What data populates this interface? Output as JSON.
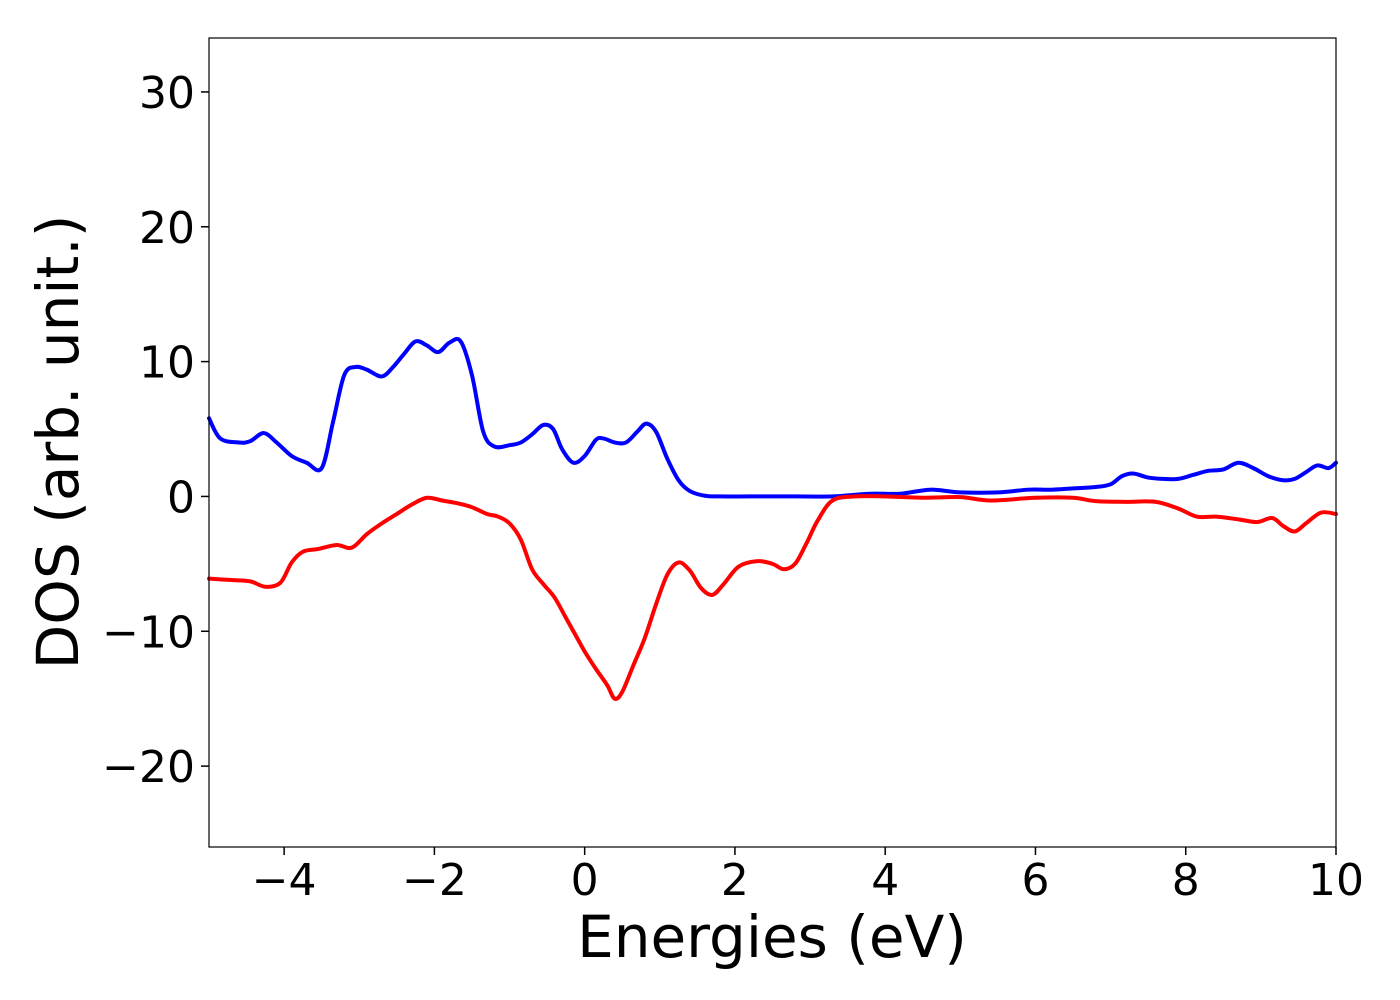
{
  "chart_data": {
    "type": "line",
    "title": "",
    "xlabel": "Energies (eV)",
    "ylabel": "DOS (arb. unit.)",
    "xlim": [
      -5,
      10
    ],
    "ylim": [
      -26,
      34
    ],
    "xticks": [
      -4,
      -2,
      0,
      2,
      4,
      6,
      8,
      10
    ],
    "yticks": [
      -20,
      -10,
      0,
      10,
      20,
      30
    ],
    "xtick_labels": [
      "−4",
      "−2",
      "0",
      "2",
      "4",
      "6",
      "8",
      "10"
    ],
    "ytick_labels": [
      "−20",
      "−10",
      "0",
      "10",
      "20",
      "30"
    ],
    "grid": false,
    "legend": "none",
    "series": [
      {
        "color": "#0000ff",
        "x": [
          -5.0,
          -4.85,
          -4.6,
          -4.45,
          -4.27,
          -4.1,
          -3.9,
          -3.7,
          -3.5,
          -3.35,
          -3.2,
          -3.05,
          -2.9,
          -2.7,
          -2.55,
          -2.4,
          -2.25,
          -2.1,
          -1.95,
          -1.8,
          -1.65,
          -1.5,
          -1.35,
          -1.2,
          -1.0,
          -0.85,
          -0.7,
          -0.55,
          -0.42,
          -0.3,
          -0.15,
          0.0,
          0.15,
          0.25,
          0.4,
          0.55,
          0.7,
          0.82,
          0.95,
          1.1,
          1.25,
          1.4,
          1.6,
          1.8,
          2.2,
          2.8,
          3.3,
          3.8,
          4.2,
          4.6,
          5.0,
          5.5,
          5.9,
          6.2,
          6.5,
          6.8,
          7.0,
          7.15,
          7.3,
          7.5,
          7.7,
          7.9,
          8.1,
          8.3,
          8.5,
          8.7,
          8.9,
          9.1,
          9.3,
          9.45,
          9.6,
          9.75,
          9.9,
          10.0
        ],
        "y": [
          5.8,
          4.3,
          4.0,
          4.1,
          4.7,
          4.0,
          3.0,
          2.5,
          2.1,
          5.5,
          9.0,
          9.6,
          9.4,
          8.9,
          9.6,
          10.6,
          11.5,
          11.2,
          10.7,
          11.4,
          11.5,
          9.0,
          4.8,
          3.7,
          3.8,
          4.0,
          4.6,
          5.3,
          5.0,
          3.5,
          2.5,
          3.0,
          4.2,
          4.3,
          4.0,
          4.0,
          4.8,
          5.4,
          4.8,
          2.8,
          1.2,
          0.4,
          0.05,
          0.0,
          0.0,
          0.0,
          0.0,
          0.2,
          0.2,
          0.5,
          0.3,
          0.3,
          0.5,
          0.5,
          0.6,
          0.7,
          0.9,
          1.5,
          1.7,
          1.4,
          1.3,
          1.3,
          1.6,
          1.9,
          2.0,
          2.5,
          2.1,
          1.5,
          1.2,
          1.3,
          1.8,
          2.3,
          2.1,
          2.5
        ]
      },
      {
        "color": "#ff0000",
        "x": [
          -5.0,
          -4.7,
          -4.45,
          -4.25,
          -4.05,
          -3.9,
          -3.75,
          -3.55,
          -3.3,
          -3.1,
          -2.9,
          -2.7,
          -2.5,
          -2.3,
          -2.1,
          -1.9,
          -1.7,
          -1.5,
          -1.3,
          -1.15,
          -1.0,
          -0.85,
          -0.7,
          -0.55,
          -0.4,
          -0.25,
          -0.1,
          0.0,
          0.15,
          0.3,
          0.4,
          0.5,
          0.65,
          0.8,
          0.95,
          1.1,
          1.25,
          1.4,
          1.55,
          1.7,
          1.85,
          2.05,
          2.3,
          2.5,
          2.65,
          2.8,
          2.95,
          3.1,
          3.3,
          3.6,
          4.0,
          4.5,
          5.0,
          5.4,
          6.0,
          6.5,
          6.8,
          7.2,
          7.6,
          7.9,
          8.15,
          8.4,
          8.7,
          8.95,
          9.15,
          9.3,
          9.45,
          9.6,
          9.8,
          10.0
        ],
        "y": [
          -6.1,
          -6.2,
          -6.3,
          -6.7,
          -6.4,
          -4.9,
          -4.1,
          -3.9,
          -3.6,
          -3.8,
          -2.8,
          -2.0,
          -1.3,
          -0.6,
          -0.1,
          -0.3,
          -0.5,
          -0.8,
          -1.3,
          -1.5,
          -2.0,
          -3.2,
          -5.4,
          -6.5,
          -7.5,
          -9.0,
          -10.5,
          -11.5,
          -12.8,
          -14.0,
          -15.0,
          -14.5,
          -12.5,
          -10.5,
          -8.0,
          -5.8,
          -4.9,
          -5.5,
          -6.8,
          -7.3,
          -6.5,
          -5.2,
          -4.8,
          -5.0,
          -5.4,
          -5.0,
          -3.5,
          -1.8,
          -0.3,
          0.0,
          0.0,
          -0.1,
          -0.05,
          -0.3,
          -0.1,
          -0.1,
          -0.35,
          -0.4,
          -0.4,
          -0.9,
          -1.5,
          -1.5,
          -1.7,
          -1.9,
          -1.6,
          -2.2,
          -2.6,
          -2.0,
          -1.2,
          -1.3
        ]
      }
    ]
  }
}
